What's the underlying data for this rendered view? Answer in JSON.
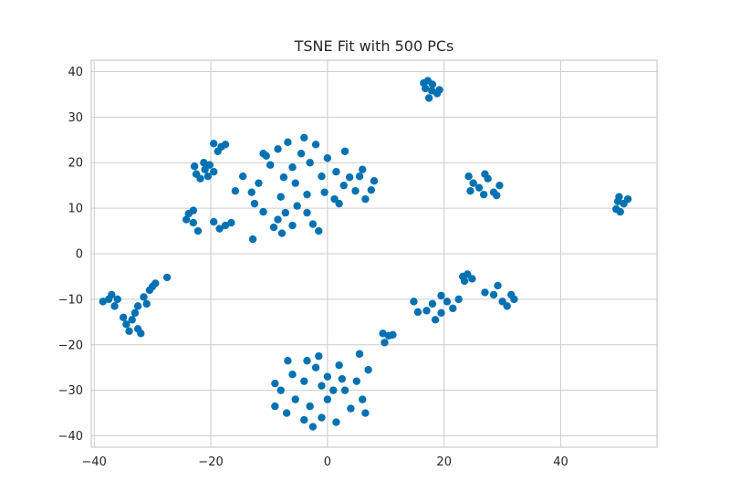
{
  "chart_data": {
    "type": "scatter",
    "title": "TSNE Fit with 500 PCs",
    "xlabel": "",
    "ylabel": "",
    "xlim": [
      -40.5,
      56.5
    ],
    "ylim": [
      -42.5,
      42.5
    ],
    "x_ticks": [
      -40,
      -20,
      0,
      20,
      40
    ],
    "y_ticks": [
      -40,
      -30,
      -20,
      -10,
      0,
      10,
      20,
      30,
      40
    ],
    "x_tick_labels": [
      "−40",
      "−20",
      "0",
      "20",
      "40"
    ],
    "y_tick_labels": [
      "−40",
      "−30",
      "−20",
      "−10",
      "0",
      "10",
      "20",
      "30",
      "40"
    ],
    "grid": true,
    "legend": "none",
    "colors": {
      "point": "#0072B2",
      "grid": "#cccccc",
      "frame": "#cccccc",
      "text": "#262626",
      "background": "#ffffff"
    },
    "series": [
      {
        "name": "points",
        "points": [
          [
            16.5,
            37.5
          ],
          [
            17.2,
            38.0
          ],
          [
            18.0,
            37.2
          ],
          [
            16.8,
            36.3
          ],
          [
            17.9,
            35.8
          ],
          [
            18.8,
            35.2
          ],
          [
            19.2,
            36.0
          ],
          [
            17.4,
            34.2
          ],
          [
            -21.0,
            18.5
          ],
          [
            -22.5,
            17.5
          ],
          [
            -20.2,
            19.5
          ],
          [
            -21.8,
            16.5
          ],
          [
            -20.5,
            17.0
          ],
          [
            -19.5,
            18.0
          ],
          [
            -22.8,
            19.2
          ],
          [
            -21.2,
            20.0
          ],
          [
            -18.2,
            23.5
          ],
          [
            -17.5,
            24.0
          ],
          [
            -18.8,
            22.5
          ],
          [
            -19.5,
            24.2
          ],
          [
            -23.8,
            8.8
          ],
          [
            -23.0,
            9.5
          ],
          [
            -24.2,
            7.5
          ],
          [
            -23.0,
            6.8
          ],
          [
            -22.2,
            5.0
          ],
          [
            -17.5,
            6.2
          ],
          [
            -18.5,
            5.5
          ],
          [
            -16.5,
            6.8
          ],
          [
            -19.5,
            7.0
          ],
          [
            -13.0,
            13.5
          ],
          [
            -11.8,
            15.5
          ],
          [
            -12.5,
            11.0
          ],
          [
            -11.0,
            9.2
          ],
          [
            -14.5,
            17.0
          ],
          [
            -15.8,
            13.8
          ],
          [
            -12.8,
            3.2
          ],
          [
            -8.5,
            7.5
          ],
          [
            -7.2,
            9.0
          ],
          [
            -9.2,
            5.8
          ],
          [
            -6.0,
            6.2
          ],
          [
            -7.8,
            4.5
          ],
          [
            -5.2,
            10.5
          ],
          [
            -8.0,
            12.5
          ],
          [
            -6.0,
            19.0
          ],
          [
            -4.5,
            22.0
          ],
          [
            -3.0,
            20.0
          ],
          [
            -2.0,
            24.0
          ],
          [
            -1.0,
            17.0
          ],
          [
            -5.5,
            15.5
          ],
          [
            -7.5,
            16.8
          ],
          [
            -3.5,
            13.0
          ],
          [
            0.0,
            21.0
          ],
          [
            1.5,
            18.0
          ],
          [
            2.8,
            15.0
          ],
          [
            -0.5,
            13.5
          ],
          [
            1.2,
            12.0
          ],
          [
            3.8,
            16.8
          ],
          [
            4.8,
            13.8
          ],
          [
            5.5,
            17.0
          ],
          [
            -2.5,
            6.5
          ],
          [
            -1.5,
            5.0
          ],
          [
            -3.5,
            9.0
          ],
          [
            -8.5,
            23.0
          ],
          [
            -6.8,
            24.5
          ],
          [
            -4.0,
            25.5
          ],
          [
            -9.8,
            19.5
          ],
          [
            -10.5,
            21.5
          ],
          [
            7.5,
            14.0
          ],
          [
            6.5,
            12.0
          ],
          [
            8.0,
            16.0
          ],
          [
            2.0,
            11.0
          ],
          [
            6.0,
            18.5
          ],
          [
            3.0,
            22.5
          ],
          [
            -11.0,
            22.0
          ],
          [
            26.0,
            14.5
          ],
          [
            27.5,
            16.5
          ],
          [
            28.5,
            13.5
          ],
          [
            25.0,
            15.5
          ],
          [
            29.5,
            15.0
          ],
          [
            24.5,
            13.8
          ],
          [
            27.0,
            17.5
          ],
          [
            29.0,
            12.8
          ],
          [
            26.8,
            13.0
          ],
          [
            24.2,
            17.0
          ],
          [
            50.0,
            12.5
          ],
          [
            50.8,
            11.0
          ],
          [
            49.5,
            9.8
          ],
          [
            51.5,
            12.0
          ],
          [
            49.8,
            11.5
          ],
          [
            50.2,
            9.2
          ],
          [
            -37.5,
            -10.0
          ],
          [
            -36.5,
            -11.5
          ],
          [
            -38.5,
            -10.5
          ],
          [
            -36.0,
            -10.0
          ],
          [
            -37.0,
            -9.0
          ],
          [
            -33.5,
            -14.5
          ],
          [
            -32.5,
            -16.5
          ],
          [
            -34.5,
            -15.5
          ],
          [
            -33.0,
            -13.0
          ],
          [
            -32.0,
            -17.5
          ],
          [
            -34.0,
            -17.0
          ],
          [
            -35.0,
            -14.0
          ],
          [
            -32.5,
            -11.5
          ],
          [
            -31.5,
            -9.5
          ],
          [
            -30.5,
            -8.0
          ],
          [
            -29.5,
            -6.5
          ],
          [
            -27.5,
            -5.2
          ],
          [
            -31.0,
            -11.0
          ],
          [
            -30.0,
            -7.2
          ],
          [
            18.0,
            -11.0
          ],
          [
            19.5,
            -13.0
          ],
          [
            20.5,
            -10.5
          ],
          [
            17.0,
            -12.5
          ],
          [
            21.5,
            -12.0
          ],
          [
            22.5,
            -10.0
          ],
          [
            18.5,
            -14.5
          ],
          [
            15.5,
            -12.8
          ],
          [
            14.8,
            -10.5
          ],
          [
            19.5,
            -9.2
          ],
          [
            23.2,
            -5.0
          ],
          [
            24.0,
            -4.5
          ],
          [
            23.5,
            -6.0
          ],
          [
            24.8,
            -5.5
          ],
          [
            28.5,
            -9.0
          ],
          [
            30.0,
            -10.5
          ],
          [
            31.5,
            -9.0
          ],
          [
            27.0,
            -8.5
          ],
          [
            30.8,
            -11.5
          ],
          [
            29.2,
            -7.0
          ],
          [
            32.0,
            -10.0
          ],
          [
            9.5,
            -17.5
          ],
          [
            10.5,
            -18.0
          ],
          [
            9.8,
            -19.5
          ],
          [
            11.2,
            -17.8
          ],
          [
            -2.0,
            -25.0
          ],
          [
            0.0,
            -27.0
          ],
          [
            2.0,
            -24.5
          ],
          [
            -4.0,
            -28.0
          ],
          [
            -6.0,
            -26.5
          ],
          [
            -8.0,
            -30.0
          ],
          [
            -9.0,
            -28.5
          ],
          [
            -5.5,
            -32.0
          ],
          [
            -3.0,
            -33.5
          ],
          [
            0.0,
            -32.0
          ],
          [
            3.0,
            -30.0
          ],
          [
            5.0,
            -28.0
          ],
          [
            6.0,
            -32.0
          ],
          [
            4.0,
            -34.0
          ],
          [
            -1.0,
            -36.0
          ],
          [
            -2.5,
            -38.0
          ],
          [
            -4.0,
            -36.5
          ],
          [
            1.0,
            -30.0
          ],
          [
            -1.0,
            -29.0
          ],
          [
            2.5,
            -27.5
          ],
          [
            5.5,
            -22.0
          ],
          [
            -1.5,
            -22.5
          ],
          [
            -6.8,
            -23.5
          ],
          [
            7.0,
            -25.5
          ],
          [
            -7.0,
            -35.0
          ],
          [
            1.5,
            -37.0
          ],
          [
            -3.5,
            -23.5
          ],
          [
            -9.0,
            -33.5
          ],
          [
            6.5,
            -35.0
          ]
        ]
      }
    ]
  }
}
